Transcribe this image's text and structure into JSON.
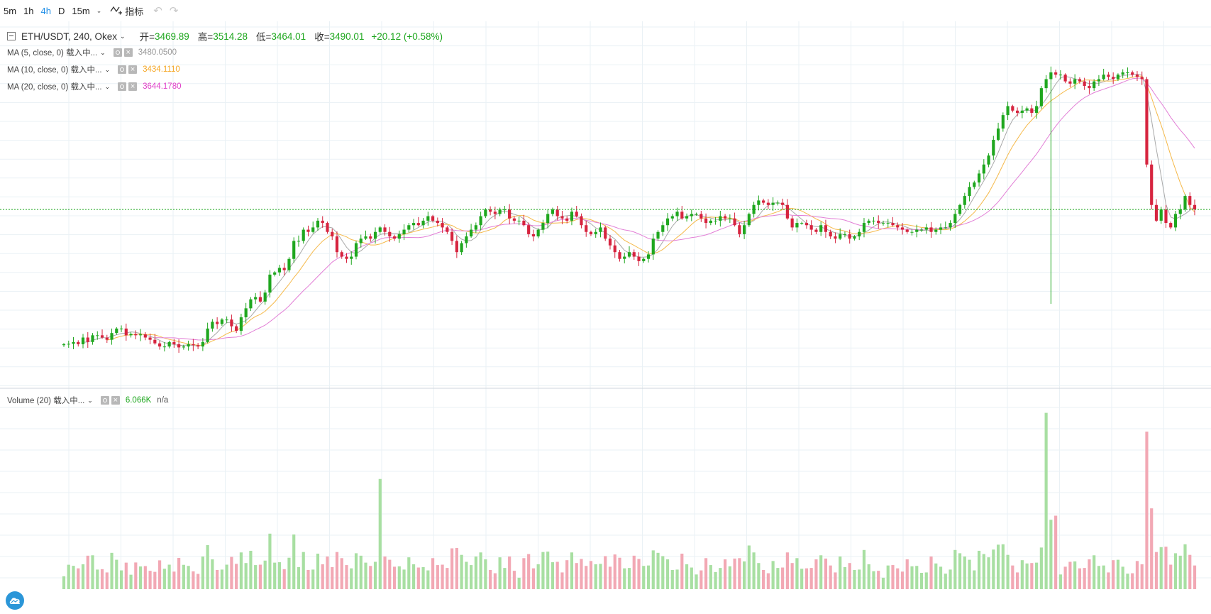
{
  "toolbar": {
    "intervals": [
      "5m",
      "1h",
      "4h",
      "D",
      "15m"
    ],
    "active_interval": "4h",
    "indicators_label": "指标"
  },
  "legend": {
    "symbol": "ETH/USDT, 240, Okex",
    "open_label": "开=",
    "open": "3469.89",
    "high_label": "高=",
    "high": "3514.28",
    "low_label": "低=",
    "low": "3464.01",
    "close_label": "收=",
    "close": "3490.01",
    "change": "+20.12 (+0.58%)"
  },
  "indicators": [
    {
      "name": "MA (5, close, 0) 载入中...",
      "value": "3480.0500",
      "color": "#999999"
    },
    {
      "name": "MA (10, close, 0) 载入中...",
      "value": "3434.1110",
      "color": "#f5a623"
    },
    {
      "name": "MA (20, close, 0) 载入中...",
      "value": "3644.1780",
      "color": "#e040c8"
    }
  ],
  "volume_indicator": {
    "name": "Volume (20) 载入中...",
    "value": "6.066K",
    "extra": "n/a"
  },
  "colors": {
    "up": "#1fa71f",
    "down": "#d6243f",
    "vol_up": "#a8dfa2",
    "vol_down": "#f2a8b4",
    "accent": "#1e8de6"
  },
  "chart_data": {
    "type": "candlestick",
    "symbol": "ETH/USDT",
    "interval": "240",
    "exchange": "Okex",
    "grid": true,
    "last_close": 3490.01,
    "ohlc_close": [
      3190,
      3191,
      3195,
      3190,
      3205,
      3195,
      3210,
      3210,
      3205,
      3200,
      3215,
      3225,
      3225,
      3210,
      3213,
      3210,
      3212,
      3205,
      3200,
      3192,
      3185,
      3185,
      3195,
      3190,
      3183,
      3185,
      3190,
      3188,
      3185,
      3195,
      3225,
      3240,
      3235,
      3245,
      3245,
      3230,
      3220,
      3250,
      3270,
      3290,
      3295,
      3285,
      3305,
      3345,
      3350,
      3360,
      3355,
      3380,
      3420,
      3420,
      3445,
      3440,
      3450,
      3465,
      3460,
      3440,
      3430,
      3395,
      3385,
      3380,
      3385,
      3415,
      3425,
      3430,
      3425,
      3440,
      3450,
      3440,
      3430,
      3425,
      3435,
      3445,
      3455,
      3460,
      3455,
      3465,
      3475,
      3465,
      3460,
      3450,
      3440,
      3420,
      3395,
      3415,
      3430,
      3445,
      3455,
      3475,
      3490,
      3485,
      3480,
      3490,
      3490,
      3470,
      3465,
      3465,
      3455,
      3435,
      3430,
      3445,
      3460,
      3480,
      3490,
      3475,
      3470,
      3465,
      3485,
      3475,
      3455,
      3440,
      3435,
      3440,
      3450,
      3425,
      3410,
      3395,
      3380,
      3385,
      3395,
      3385,
      3375,
      3380,
      3390,
      3425,
      3440,
      3455,
      3470,
      3475,
      3485,
      3470,
      3475,
      3480,
      3480,
      3470,
      3460,
      3465,
      3465,
      3475,
      3470,
      3470,
      3455,
      3435,
      3455,
      3480,
      3500,
      3510,
      3505,
      3500,
      3505,
      3505,
      3500,
      3470,
      3450,
      3460,
      3460,
      3455,
      3445,
      3440,
      3455,
      3440,
      3430,
      3425,
      3435,
      3435,
      3425,
      3430,
      3440,
      3460,
      3465,
      3465,
      3460,
      3460,
      3460,
      3455,
      3450,
      3445,
      3440,
      3440,
      3445,
      3445,
      3450,
      3440,
      3445,
      3450,
      3450,
      3460,
      3480,
      3500,
      3520,
      3540,
      3550,
      3570,
      3590,
      3610,
      3645,
      3670,
      3700,
      3720,
      3710,
      3705,
      3710,
      3715,
      3705,
      3720,
      3760,
      3780,
      3795,
      3790,
      3790,
      3775,
      3770,
      3780,
      3775,
      3765,
      3760,
      3775,
      3780,
      3790,
      3785,
      3780,
      3790,
      3795,
      3795,
      3790,
      3785,
      3780,
      3590,
      3500,
      3465,
      3490,
      3460,
      3450,
      3480,
      3490,
      3520,
      3500,
      3490
    ],
    "ma5_last": 3480.05,
    "ma10_last": 3434.111,
    "ma20_last": 3644.178,
    "volume_last": "6.066K"
  }
}
